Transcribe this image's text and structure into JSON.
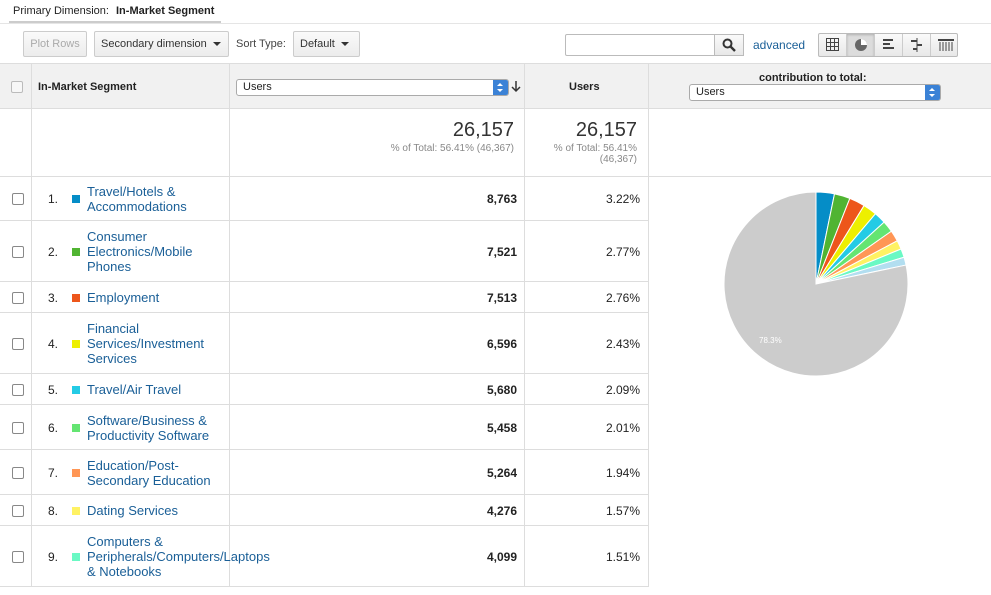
{
  "primary_dimension": {
    "label": "Primary Dimension:",
    "value": "In-Market Segment"
  },
  "toolbar": {
    "plot_rows": "Plot Rows",
    "secondary_dimension": "Secondary dimension",
    "sort_type_label": "Sort Type:",
    "sort_type_value": "Default",
    "search_placeholder": "",
    "advanced": "advanced"
  },
  "header": {
    "dimension": "In-Market Segment",
    "metric_select": "Users",
    "users": "Users",
    "contribution": "contribution to total:",
    "contribution_select": "Users"
  },
  "totals": {
    "value1": "26,157",
    "sub1": "% of Total: 56.41% (46,367)",
    "value2": "26,157",
    "sub2_line1": "% of Total: 56.41%",
    "sub2_line2": "(46,367)"
  },
  "colors": {
    "accent": "#1a5f97",
    "pie_other": "#cccccc"
  },
  "rows": [
    {
      "idx": "1.",
      "lines": [
        "Travel/Hotels &",
        "Accommodations"
      ],
      "users": "8,763",
      "pct": "3.22%",
      "color": "#058dc7"
    },
    {
      "idx": "2.",
      "lines": [
        "Consumer",
        "Electronics/Mobile",
        "Phones"
      ],
      "users": "7,521",
      "pct": "2.77%",
      "color": "#50b432"
    },
    {
      "idx": "3.",
      "lines": [
        "Employment"
      ],
      "users": "7,513",
      "pct": "2.76%",
      "color": "#ed561b"
    },
    {
      "idx": "4.",
      "lines": [
        "Financial",
        "Services/Investment",
        "Services"
      ],
      "users": "6,596",
      "pct": "2.43%",
      "color": "#edef00"
    },
    {
      "idx": "5.",
      "lines": [
        "Travel/Air Travel"
      ],
      "users": "5,680",
      "pct": "2.09%",
      "color": "#24cbe5"
    },
    {
      "idx": "6.",
      "lines": [
        "Software/Business &",
        "Productivity Software"
      ],
      "users": "5,458",
      "pct": "2.01%",
      "color": "#64e572"
    },
    {
      "idx": "7.",
      "lines": [
        "Education/Post-",
        "Secondary Education"
      ],
      "users": "5,264",
      "pct": "1.94%",
      "color": "#ff9655"
    },
    {
      "idx": "8.",
      "lines": [
        "Dating Services"
      ],
      "users": "4,276",
      "pct": "1.57%",
      "color": "#fff263"
    },
    {
      "idx": "9.",
      "lines": [
        "Computers &",
        "Peripherals/Computers/Laptops",
        "& Notebooks"
      ],
      "users": "4,099",
      "pct": "1.51%",
      "color": "#6af9c4"
    }
  ],
  "pie": {
    "other_label": "78.3%",
    "slices": [
      {
        "value": 3.22,
        "color": "#058dc7"
      },
      {
        "value": 2.77,
        "color": "#50b432"
      },
      {
        "value": 2.76,
        "color": "#ed561b"
      },
      {
        "value": 2.43,
        "color": "#edef00"
      },
      {
        "value": 2.09,
        "color": "#24cbe5"
      },
      {
        "value": 2.01,
        "color": "#64e572"
      },
      {
        "value": 1.94,
        "color": "#ff9655"
      },
      {
        "value": 1.57,
        "color": "#fff263"
      },
      {
        "value": 1.51,
        "color": "#6af9c4"
      },
      {
        "value": 1.4,
        "color": "#b2def0"
      },
      {
        "value": 78.3,
        "color": "#cccccc"
      }
    ]
  }
}
